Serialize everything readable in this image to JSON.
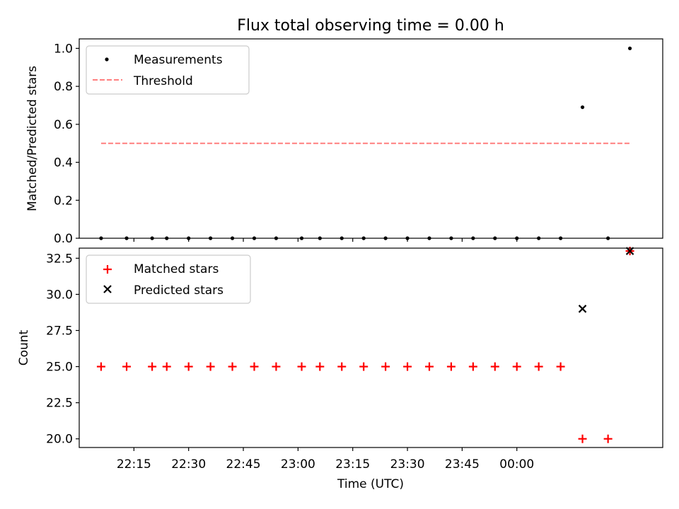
{
  "title": "Flux total observing time = 0.00 h",
  "chart_data": [
    {
      "type": "scatter",
      "ylabel": "Matched/Predicted stars",
      "ylim": [
        0,
        1.05
      ],
      "y_ticks": [
        0.0,
        0.2,
        0.4,
        0.6,
        0.8,
        1.0
      ],
      "y_tick_labels": [
        "0.0",
        "0.2",
        "0.4",
        "0.6",
        "0.8",
        "1.0"
      ],
      "legend": {
        "position": "top-left",
        "items": [
          "Measurements",
          "Threshold"
        ]
      },
      "series": [
        {
          "name": "Measurements",
          "marker": "dot",
          "color": "#000000",
          "x": [
            "22:06",
            "22:13",
            "22:20",
            "22:24",
            "22:30",
            "22:36",
            "22:42",
            "22:48",
            "22:54",
            "23:01",
            "23:06",
            "23:12",
            "23:18",
            "23:24",
            "23:30",
            "23:36",
            "23:42",
            "23:48",
            "23:54",
            "24:00",
            "24:06",
            "24:12",
            "24:18",
            "24:25",
            "24:31"
          ],
          "y": [
            0,
            0,
            0,
            0,
            0,
            0,
            0,
            0,
            0,
            0,
            0,
            0,
            0,
            0,
            0,
            0,
            0,
            0,
            0,
            0,
            0,
            0,
            0.69,
            0,
            1.0
          ]
        },
        {
          "name": "Threshold",
          "style": "dashed",
          "color": "#ff7f7f",
          "x": [
            "22:06",
            "24:31"
          ],
          "y": [
            0.5,
            0.5
          ]
        }
      ]
    },
    {
      "type": "scatter",
      "xlabel": "Time (UTC)",
      "ylabel": "Count",
      "ylim": [
        19.4,
        33.2
      ],
      "y_ticks": [
        20.0,
        22.5,
        25.0,
        27.5,
        30.0,
        32.5
      ],
      "y_tick_labels": [
        "20.0",
        "22.5",
        "25.0",
        "27.5",
        "30.0",
        "32.5"
      ],
      "x_ticks": [
        "22:15",
        "22:30",
        "22:45",
        "23:00",
        "23:15",
        "23:30",
        "23:45",
        "00:00"
      ],
      "legend": {
        "position": "top-left",
        "items": [
          "Matched stars",
          "Predicted stars"
        ]
      },
      "series": [
        {
          "name": "Matched stars",
          "marker": "plus",
          "color": "#ff0000",
          "x": [
            "22:06",
            "22:13",
            "22:20",
            "22:24",
            "22:30",
            "22:36",
            "22:42",
            "22:48",
            "22:54",
            "23:01",
            "23:06",
            "23:12",
            "23:18",
            "23:24",
            "23:30",
            "23:36",
            "23:42",
            "23:48",
            "23:54",
            "24:00",
            "24:06",
            "24:12",
            "24:18",
            "24:25",
            "24:31"
          ],
          "y": [
            25,
            25,
            25,
            25,
            25,
            25,
            25,
            25,
            25,
            25,
            25,
            25,
            25,
            25,
            25,
            25,
            25,
            25,
            25,
            25,
            25,
            25,
            20,
            20,
            33
          ]
        },
        {
          "name": "Predicted stars",
          "marker": "x",
          "color": "#000000",
          "x": [
            "24:18",
            "24:31"
          ],
          "y": [
            29,
            33
          ]
        }
      ]
    }
  ]
}
